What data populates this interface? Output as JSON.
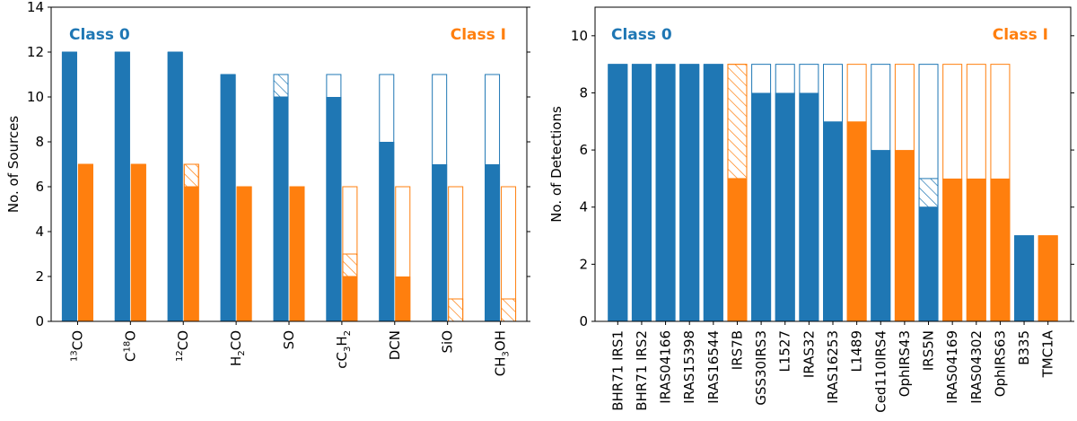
{
  "colors": {
    "class0": "#1f77b4",
    "class1": "#ff7f0e"
  },
  "chart_data": [
    {
      "type": "bar",
      "id": "left",
      "title": "",
      "ylabel": "No. of Sources",
      "ylim": [
        0,
        14
      ],
      "yticks": [
        0,
        2,
        4,
        6,
        8,
        10,
        12,
        14
      ],
      "legend_left": "Class 0",
      "legend_right": "Class I",
      "categories": [
        {
          "pre": "",
          "sup": "13",
          "main": "CO",
          "sub": "",
          "post": ""
        },
        {
          "pre": "C",
          "sup": "18",
          "main": "O",
          "sub": "",
          "post": ""
        },
        {
          "pre": "",
          "sup": "12",
          "main": "CO",
          "sub": "",
          "post": ""
        },
        {
          "pre": "",
          "sup": "",
          "main": "H",
          "sub": "2",
          "post": "CO"
        },
        {
          "pre": "",
          "sup": "",
          "main": "SO",
          "sub": "",
          "post": ""
        },
        {
          "pre": "",
          "sup": "",
          "main": "cC",
          "sub": "3",
          "post": "H",
          "sub2": "2"
        },
        {
          "pre": "",
          "sup": "",
          "main": "DCN",
          "sub": "",
          "post": ""
        },
        {
          "pre": "",
          "sup": "",
          "main": "SiO",
          "sub": "",
          "post": ""
        },
        {
          "pre": "",
          "sup": "",
          "main": "CH",
          "sub": "3",
          "post": "OH"
        }
      ],
      "series": [
        {
          "name": "Class 0",
          "color_key": "class0",
          "detected": [
            12,
            12,
            12,
            11,
            10,
            10,
            8,
            7,
            7
          ],
          "tentative": [
            0,
            0,
            0,
            0,
            1,
            0,
            0,
            0,
            0
          ],
          "total": [
            12,
            12,
            12,
            11,
            11,
            11,
            11,
            11,
            11
          ]
        },
        {
          "name": "Class I",
          "color_key": "class1",
          "detected": [
            7,
            7,
            6,
            6,
            6,
            2,
            2,
            0,
            0
          ],
          "tentative": [
            0,
            0,
            1,
            0,
            0,
            1,
            0,
            1,
            1
          ],
          "total": [
            7,
            7,
            7,
            6,
            6,
            6,
            6,
            6,
            6
          ]
        }
      ]
    },
    {
      "type": "bar",
      "id": "right",
      "title": "",
      "ylabel": "No. of Detections",
      "ylim": [
        0,
        11
      ],
      "yticks": [
        0,
        2,
        4,
        6,
        8,
        10
      ],
      "legend_left": "Class 0",
      "legend_right": "Class I",
      "categories": [
        "BHR71 IRS1",
        "BHR71 IRS2",
        "IRAS04166",
        "IRAS15398",
        "IRAS16544",
        "IRS7B",
        "GSS30IRS3",
        "L1527",
        "IRAS32",
        "IRAS16253",
        "L1489",
        "Ced110IRS4",
        "OphIRS43",
        "IRS5N",
        "IRAS04169",
        "IRAS04302",
        "OphIRS63",
        "B335",
        "TMC1A"
      ],
      "classes": [
        "class0",
        "class0",
        "class0",
        "class0",
        "class0",
        "class1",
        "class0",
        "class0",
        "class0",
        "class0",
        "class1",
        "class0",
        "class1",
        "class0",
        "class1",
        "class1",
        "class1",
        "class0",
        "class1"
      ],
      "detected": [
        9,
        9,
        9,
        9,
        9,
        5,
        8,
        8,
        8,
        7,
        7,
        6,
        6,
        4,
        5,
        5,
        5,
        3,
        3
      ],
      "tentative": [
        0,
        0,
        0,
        0,
        0,
        4,
        0,
        0,
        0,
        0,
        0,
        0,
        0,
        1,
        0,
        0,
        0,
        0,
        0
      ],
      "total": [
        9,
        9,
        9,
        9,
        9,
        9,
        9,
        9,
        9,
        9,
        9,
        9,
        9,
        9,
        9,
        9,
        9,
        3,
        3
      ]
    }
  ]
}
